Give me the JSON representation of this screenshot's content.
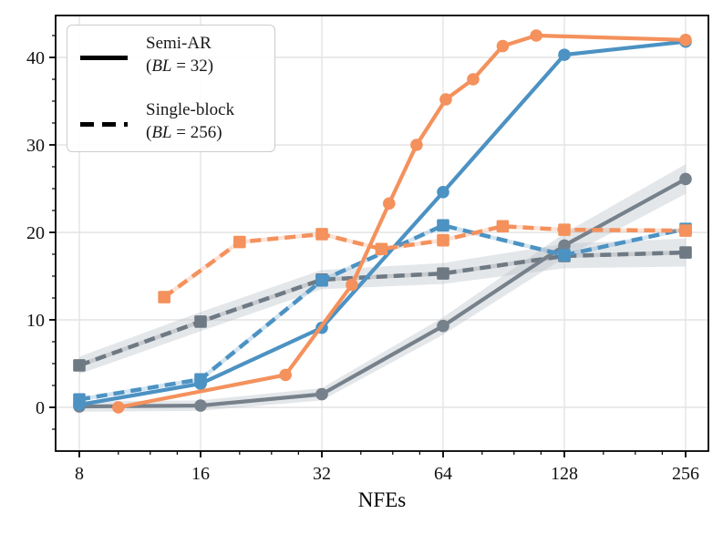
{
  "figure": {
    "background": "#ffffff",
    "xlabel": "NFEs"
  },
  "legend": {
    "entries": [
      {
        "label": "Semi-AR",
        "style": "solid",
        "sub": {
          "open": "(",
          "var": "BL",
          "rest": " = 32)"
        }
      },
      {
        "label": "Single-block",
        "style": "dashed",
        "sub": {
          "open": "(",
          "var": "BL",
          "rest": " = 256)"
        }
      }
    ]
  },
  "colors": {
    "orange": "#F4915C",
    "blue": "#4C92C3",
    "gray_solid": "#76818B",
    "gray_dashed": "#6E7983",
    "grid": "#E4E4E4",
    "band": "#B9C0C7",
    "spine": "#000000",
    "text": "#111111"
  },
  "chart_data": {
    "type": "line",
    "title": "",
    "xlabel": "NFEs",
    "ylabel": "",
    "x_scale": "log2",
    "xlim": [
      7,
      295
    ],
    "ylim": [
      -5,
      44.8
    ],
    "grid": "major-both",
    "legend_position": "upper-left",
    "x_major_ticks": [
      8,
      16,
      32,
      64,
      128,
      256
    ],
    "x_minor_ticks": [
      10,
      12,
      14,
      20,
      24,
      28,
      40,
      48,
      56,
      80,
      96,
      112,
      160,
      192,
      224
    ],
    "y_major_ticks": [
      0,
      10,
      20,
      30,
      40
    ],
    "y_minor_ticks": [
      -2.5,
      2.5,
      5,
      7.5,
      12.5,
      15,
      17.5,
      22.5,
      25,
      27.5,
      32.5,
      35,
      37.5,
      42.5
    ],
    "series": [
      {
        "name": "single-block-gray",
        "group": "Single-block (BL = 256)",
        "color": "#6E7983",
        "line_style": "dashed",
        "marker": "square",
        "x": [
          8,
          16,
          32,
          64,
          128,
          256
        ],
        "y": [
          4.8,
          9.8,
          14.6,
          15.3,
          17.3,
          17.7
        ],
        "band": [
          1.0,
          1.1,
          1.1,
          1.2,
          1.4,
          1.6
        ]
      },
      {
        "name": "semi-ar-gray",
        "group": "Semi-AR (BL = 32)",
        "color": "#76818B",
        "line_style": "solid",
        "marker": "circle",
        "x": [
          8,
          16,
          32,
          64,
          128,
          256
        ],
        "y": [
          0.1,
          0.2,
          1.5,
          9.3,
          18.5,
          26.1
        ],
        "band": [
          0.6,
          0.6,
          0.7,
          1.0,
          1.4,
          1.7
        ]
      },
      {
        "name": "semi-ar-blue",
        "group": "Semi-AR (BL = 32)",
        "color": "#4C92C3",
        "line_style": "solid",
        "marker": "circle",
        "x": [
          8,
          16,
          32,
          64,
          128,
          256
        ],
        "y": [
          0.3,
          2.7,
          9.1,
          24.6,
          40.3,
          41.8
        ],
        "band": null
      },
      {
        "name": "single-block-blue",
        "group": "Single-block (BL = 256)",
        "color": "#4C92C3",
        "line_style": "dashed",
        "marker": "square",
        "x": [
          8,
          16,
          32,
          64,
          128,
          256
        ],
        "y": [
          0.9,
          3.2,
          14.5,
          20.8,
          17.4,
          20.4
        ],
        "band": null
      },
      {
        "name": "single-block-orange",
        "group": "Single-block (BL = 256)",
        "color": "#F4915C",
        "line_style": "dashed",
        "marker": "square",
        "x": [
          13,
          20,
          32,
          45,
          64,
          90,
          128,
          256
        ],
        "y": [
          12.6,
          18.9,
          19.8,
          18.1,
          19.1,
          20.7,
          20.3,
          20.2
        ],
        "band": null
      },
      {
        "name": "semi-ar-orange",
        "group": "Semi-AR (BL = 32)",
        "color": "#F4915C",
        "line_style": "solid",
        "marker": "circle",
        "x": [
          10,
          26,
          38,
          47,
          55,
          65,
          76,
          90,
          109,
          256
        ],
        "y": [
          0.0,
          3.7,
          14.0,
          23.3,
          30.0,
          35.2,
          37.5,
          41.3,
          42.5,
          42.0
        ],
        "band": null
      }
    ]
  }
}
